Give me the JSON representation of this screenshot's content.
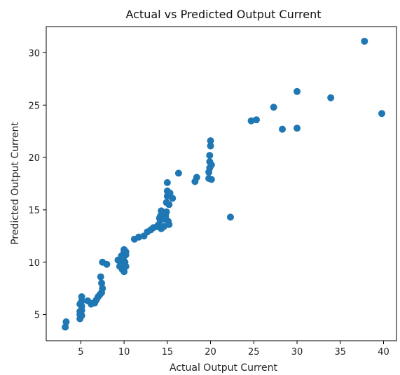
{
  "chart_data": {
    "type": "scatter",
    "title": "Actual vs Predicted Output Current",
    "xlabel": "Actual Output Current",
    "ylabel": "Predicted Output Current",
    "xlim": [
      1,
      41.5
    ],
    "ylim": [
      2.5,
      32.5
    ],
    "xticks": [
      5,
      10,
      15,
      20,
      25,
      30,
      35,
      40
    ],
    "yticks": [
      5,
      10,
      15,
      20,
      25,
      30
    ],
    "grid": false,
    "marker_color": "#1f77b4",
    "points": [
      [
        3.2,
        3.8
      ],
      [
        3.3,
        4.3
      ],
      [
        4.9,
        4.6
      ],
      [
        4.9,
        5.0
      ],
      [
        4.9,
        5.3
      ],
      [
        4.9,
        6.0
      ],
      [
        5.1,
        4.9
      ],
      [
        5.1,
        5.4
      ],
      [
        5.1,
        5.8
      ],
      [
        5.1,
        6.3
      ],
      [
        5.1,
        6.7
      ],
      [
        5.8,
        6.3
      ],
      [
        6.2,
        6.0
      ],
      [
        6.4,
        6.1
      ],
      [
        6.6,
        6.1
      ],
      [
        6.8,
        6.4
      ],
      [
        7.0,
        6.7
      ],
      [
        7.2,
        6.9
      ],
      [
        7.4,
        7.1
      ],
      [
        7.5,
        7.5
      ],
      [
        7.4,
        8.0
      ],
      [
        7.3,
        8.6
      ],
      [
        7.5,
        10.0
      ],
      [
        8.0,
        9.8
      ],
      [
        9.3,
        10.2
      ],
      [
        9.5,
        9.6
      ],
      [
        9.6,
        10.0
      ],
      [
        9.7,
        10.6
      ],
      [
        9.8,
        9.3
      ],
      [
        9.9,
        9.8
      ],
      [
        10.0,
        9.1
      ],
      [
        9.9,
        10.3
      ],
      [
        9.9,
        10.6
      ],
      [
        10.0,
        11.2
      ],
      [
        10.0,
        11.0
      ],
      [
        10.1,
        10.0
      ],
      [
        10.2,
        10.7
      ],
      [
        10.2,
        11.0
      ],
      [
        10.2,
        9.6
      ],
      [
        11.2,
        12.2
      ],
      [
        11.7,
        12.4
      ],
      [
        12.3,
        12.5
      ],
      [
        12.7,
        12.9
      ],
      [
        13.1,
        13.1
      ],
      [
        13.4,
        13.3
      ],
      [
        13.8,
        13.4
      ],
      [
        14.0,
        13.6
      ],
      [
        14.2,
        14.0
      ],
      [
        14.3,
        13.2
      ],
      [
        14.1,
        14.2
      ],
      [
        14.2,
        14.4
      ],
      [
        14.3,
        14.9
      ],
      [
        14.6,
        13.4
      ],
      [
        14.6,
        14.1
      ],
      [
        14.8,
        14.4
      ],
      [
        14.9,
        14.8
      ],
      [
        14.9,
        15.7
      ],
      [
        15.0,
        16.3
      ],
      [
        15.0,
        16.8
      ],
      [
        15.0,
        17.6
      ],
      [
        15.1,
        13.9
      ],
      [
        15.2,
        13.6
      ],
      [
        15.2,
        15.5
      ],
      [
        15.3,
        16.6
      ],
      [
        15.6,
        16.1
      ],
      [
        16.3,
        18.5
      ],
      [
        18.2,
        17.7
      ],
      [
        18.4,
        18.1
      ],
      [
        19.8,
        18.0
      ],
      [
        19.8,
        18.6
      ],
      [
        19.9,
        19.0
      ],
      [
        19.9,
        19.6
      ],
      [
        19.9,
        20.2
      ],
      [
        20.0,
        21.1
      ],
      [
        20.0,
        21.6
      ],
      [
        20.1,
        17.9
      ],
      [
        20.1,
        19.3
      ],
      [
        22.3,
        14.3
      ],
      [
        24.7,
        23.5
      ],
      [
        25.3,
        23.6
      ],
      [
        27.3,
        24.8
      ],
      [
        28.3,
        22.7
      ],
      [
        30.0,
        22.8
      ],
      [
        30.0,
        26.3
      ],
      [
        33.9,
        25.7
      ],
      [
        37.8,
        31.1
      ],
      [
        39.8,
        24.2
      ]
    ]
  }
}
